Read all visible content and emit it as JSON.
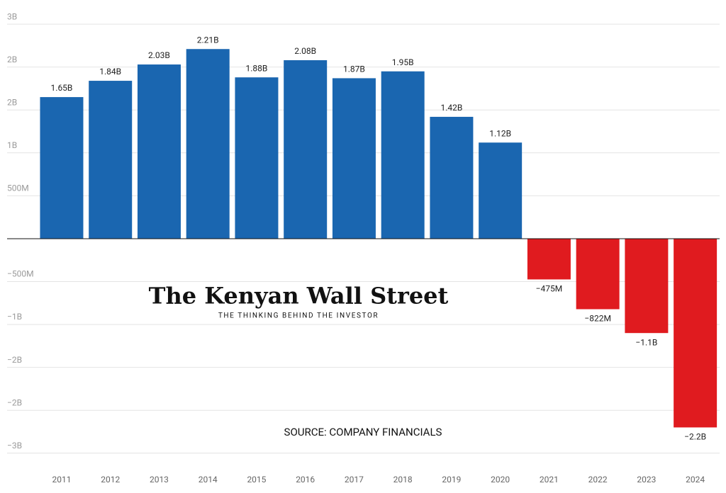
{
  "chart_data": {
    "type": "bar",
    "categories": [
      "2011",
      "2012",
      "2013",
      "2014",
      "2015",
      "2016",
      "2017",
      "2018",
      "2019",
      "2020",
      "2021",
      "2022",
      "2023",
      "2024"
    ],
    "values": [
      1650000000,
      1840000000,
      2030000000,
      2210000000,
      1880000000,
      2080000000,
      1870000000,
      1950000000,
      1420000000,
      1120000000,
      -475000000,
      -822000000,
      -1100000000,
      -2200000000
    ],
    "value_labels": [
      "1.65B",
      "1.84B",
      "2.03B",
      "2.21B",
      "1.88B",
      "2.08B",
      "1.87B",
      "1.95B",
      "1.42B",
      "1.12B",
      "−475M",
      "−822M",
      "−1.1B",
      "−2.2B"
    ],
    "colors": [
      "#1a66b0",
      "#1a66b0",
      "#1a66b0",
      "#1a66b0",
      "#1a66b0",
      "#1a66b0",
      "#1a66b0",
      "#1a66b0",
      "#1a66b0",
      "#1a66b0",
      "#e01b1f",
      "#e01b1f",
      "#e01b1f",
      "#e01b1f"
    ],
    "ylim": [
      -2700000000,
      2600000000
    ],
    "yticks": [
      {
        "value": -2500000000,
        "label": "−3B"
      },
      {
        "value": -2000000000,
        "label": "−2B"
      },
      {
        "value": -1500000000,
        "label": "−2B"
      },
      {
        "value": -1000000000,
        "label": "−1B"
      },
      {
        "value": -500000000,
        "label": "−500M"
      },
      {
        "value": 500000000,
        "label": "500M"
      },
      {
        "value": 1000000000,
        "label": "1B"
      },
      {
        "value": 1500000000,
        "label": "2B"
      },
      {
        "value": 2000000000,
        "label": "2B"
      },
      {
        "value": 2500000000,
        "label": "3B"
      }
    ],
    "grid": true,
    "watermark": "The Kenyan Wall Street",
    "watermark_tagline": "THE THINKING BEHIND THE INVESTOR",
    "source": "SOURCE: COMPANY FINANCIALS"
  }
}
